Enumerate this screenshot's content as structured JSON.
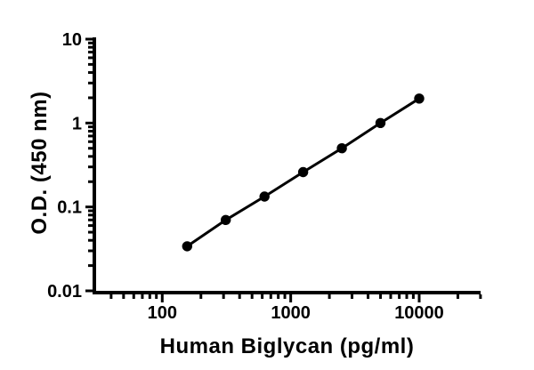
{
  "figure": {
    "background_color": "#ffffff",
    "axis_color": "#000000",
    "text_color": "#000000"
  },
  "chart_data": {
    "type": "scatter",
    "title": "",
    "xlabel": "Human Biglycan (pg/ml)",
    "ylabel": "O.D. (450 nm)",
    "x_scale": "log",
    "y_scale": "log",
    "xlim": [
      30,
      30000
    ],
    "ylim": [
      0.01,
      10
    ],
    "grid": false,
    "legend": false,
    "x_major_ticks": [
      {
        "value": 100,
        "label": "100"
      },
      {
        "value": 1000,
        "label": "1000"
      },
      {
        "value": 10000,
        "label": "10000"
      }
    ],
    "y_major_ticks": [
      {
        "value": 10,
        "label": "10"
      },
      {
        "value": 1,
        "label": "1"
      },
      {
        "value": 0.1,
        "label": "0.1"
      },
      {
        "value": 0.01,
        "label": "0.01"
      }
    ],
    "series": [
      {
        "name": "standard-curve",
        "marker": "circle",
        "line_color": "#000000",
        "marker_color": "#000000",
        "points": [
          {
            "x": 156.25,
            "y": 0.034
          },
          {
            "x": 312.5,
            "y": 0.07
          },
          {
            "x": 625,
            "y": 0.133
          },
          {
            "x": 1250,
            "y": 0.26
          },
          {
            "x": 2500,
            "y": 0.5
          },
          {
            "x": 5000,
            "y": 1.0
          },
          {
            "x": 10000,
            "y": 1.96
          }
        ]
      }
    ]
  }
}
